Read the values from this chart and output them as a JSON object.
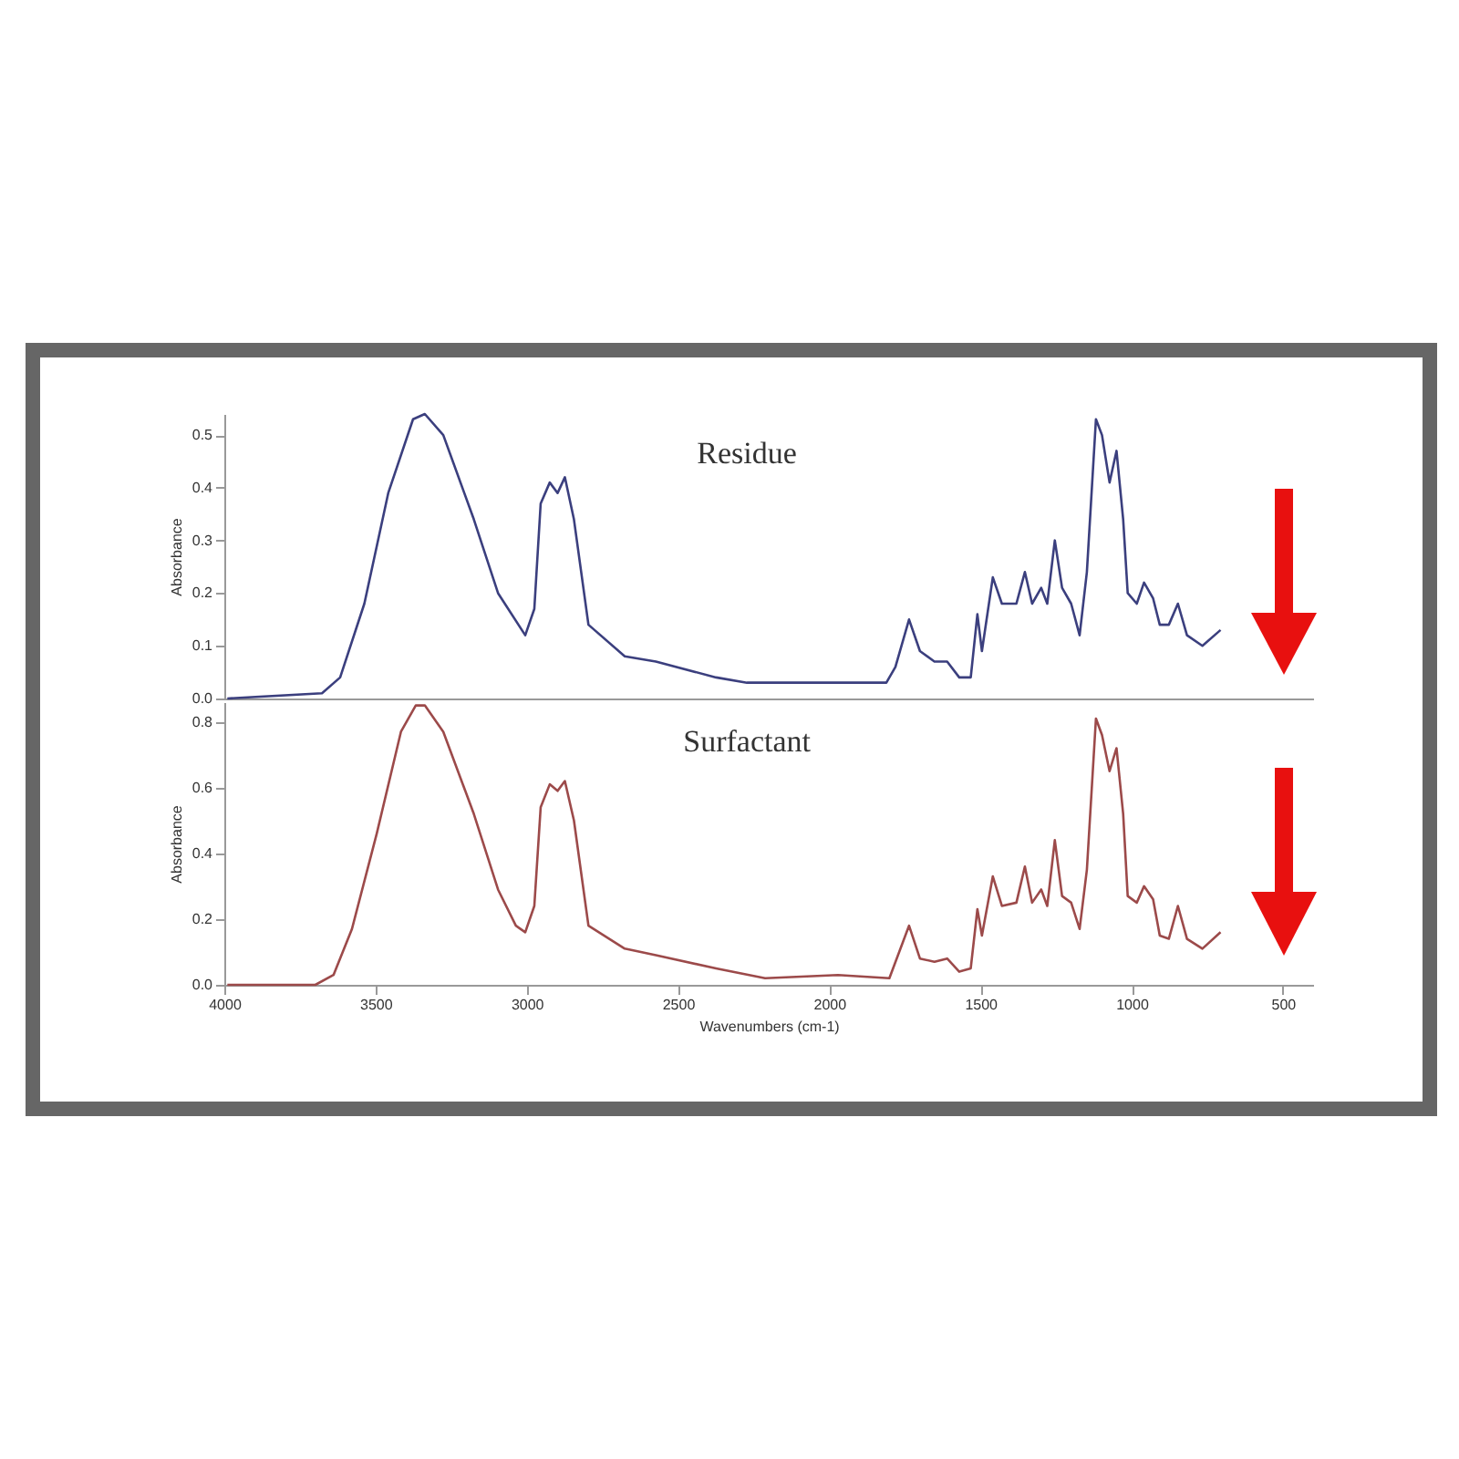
{
  "chart_data": [
    {
      "type": "line",
      "ylabel": "Absorbance",
      "xlim": [
        4000,
        400
      ],
      "ylim": [
        0,
        0.54
      ],
      "yticks": [
        {
          "value": 0,
          "label": "0.0"
        },
        0.1,
        0.2,
        0.3,
        0.4,
        0.5
      ],
      "tick_labels": "y",
      "legend": false,
      "grid": false,
      "x": [
        3990,
        3677,
        3617,
        3537,
        3458,
        3376,
        3337,
        3276,
        3175,
        3095,
        3005,
        2975,
        2954,
        2924,
        2898,
        2874,
        2844,
        2796,
        2676,
        2573,
        2374,
        2272,
        2092,
        1971,
        1811,
        1781,
        1736,
        1700,
        1652,
        1610,
        1570,
        1532,
        1510,
        1495,
        1459,
        1429,
        1381,
        1353,
        1329,
        1299,
        1279,
        1254,
        1230,
        1200,
        1172,
        1148,
        1118,
        1098,
        1073,
        1050,
        1028,
        1013,
        983,
        959,
        929,
        907,
        877,
        847,
        817,
        766,
        706
      ],
      "series": [
        {
          "name": "Residue",
          "color": "#3b3f7e",
          "values": [
            0.0,
            0.01,
            0.04,
            0.18,
            0.39,
            0.53,
            0.54,
            0.5,
            0.34,
            0.2,
            0.12,
            0.17,
            0.37,
            0.41,
            0.39,
            0.42,
            0.34,
            0.14,
            0.08,
            0.07,
            0.04,
            0.03,
            0.03,
            0.03,
            0.03,
            0.06,
            0.15,
            0.09,
            0.07,
            0.07,
            0.04,
            0.04,
            0.16,
            0.09,
            0.23,
            0.18,
            0.18,
            0.24,
            0.18,
            0.21,
            0.18,
            0.3,
            0.21,
            0.18,
            0.12,
            0.24,
            0.53,
            0.5,
            0.41,
            0.47,
            0.34,
            0.2,
            0.18,
            0.22,
            0.19,
            0.14,
            0.14,
            0.18,
            0.12,
            0.1,
            0.13
          ]
        }
      ]
    },
    {
      "type": "line",
      "ylabel": "Absorbance",
      "xlabel": "Wavenumbers (cm-1)",
      "xlim": [
        4000,
        400
      ],
      "xticks": [
        4000,
        3500,
        3000,
        2500,
        2000,
        1500,
        1000,
        500
      ],
      "ylim": [
        0,
        0.86
      ],
      "yticks": [
        {
          "value": 0,
          "label": "0.0"
        },
        0.2,
        0.4,
        0.6,
        0.8
      ],
      "legend": false,
      "grid": false,
      "x": [
        3990,
        3699,
        3639,
        3578,
        3496,
        3416,
        3367,
        3337,
        3276,
        3175,
        3095,
        3036,
        3005,
        2975,
        2954,
        2924,
        2898,
        2874,
        2844,
        2796,
        2676,
        2573,
        2374,
        2212,
        1971,
        1801,
        1736,
        1700,
        1652,
        1610,
        1570,
        1532,
        1510,
        1495,
        1459,
        1429,
        1381,
        1353,
        1329,
        1299,
        1279,
        1254,
        1230,
        1200,
        1172,
        1148,
        1118,
        1098,
        1073,
        1050,
        1028,
        1013,
        983,
        959,
        929,
        907,
        877,
        847,
        817,
        766,
        706
      ],
      "series": [
        {
          "name": "Surfactant",
          "color": "#9c4a4a",
          "values": [
            0,
            0,
            0.03,
            0.17,
            0.46,
            0.77,
            0.85,
            0.85,
            0.77,
            0.52,
            0.29,
            0.18,
            0.16,
            0.24,
            0.54,
            0.61,
            0.59,
            0.62,
            0.5,
            0.18,
            0.11,
            0.09,
            0.05,
            0.02,
            0.03,
            0.02,
            0.18,
            0.08,
            0.07,
            0.08,
            0.04,
            0.05,
            0.23,
            0.15,
            0.33,
            0.24,
            0.25,
            0.36,
            0.25,
            0.29,
            0.24,
            0.44,
            0.27,
            0.25,
            0.17,
            0.35,
            0.81,
            0.76,
            0.65,
            0.72,
            0.52,
            0.27,
            0.25,
            0.3,
            0.26,
            0.15,
            0.14,
            0.24,
            0.14,
            0.11,
            0.16
          ]
        }
      ]
    }
  ]
}
